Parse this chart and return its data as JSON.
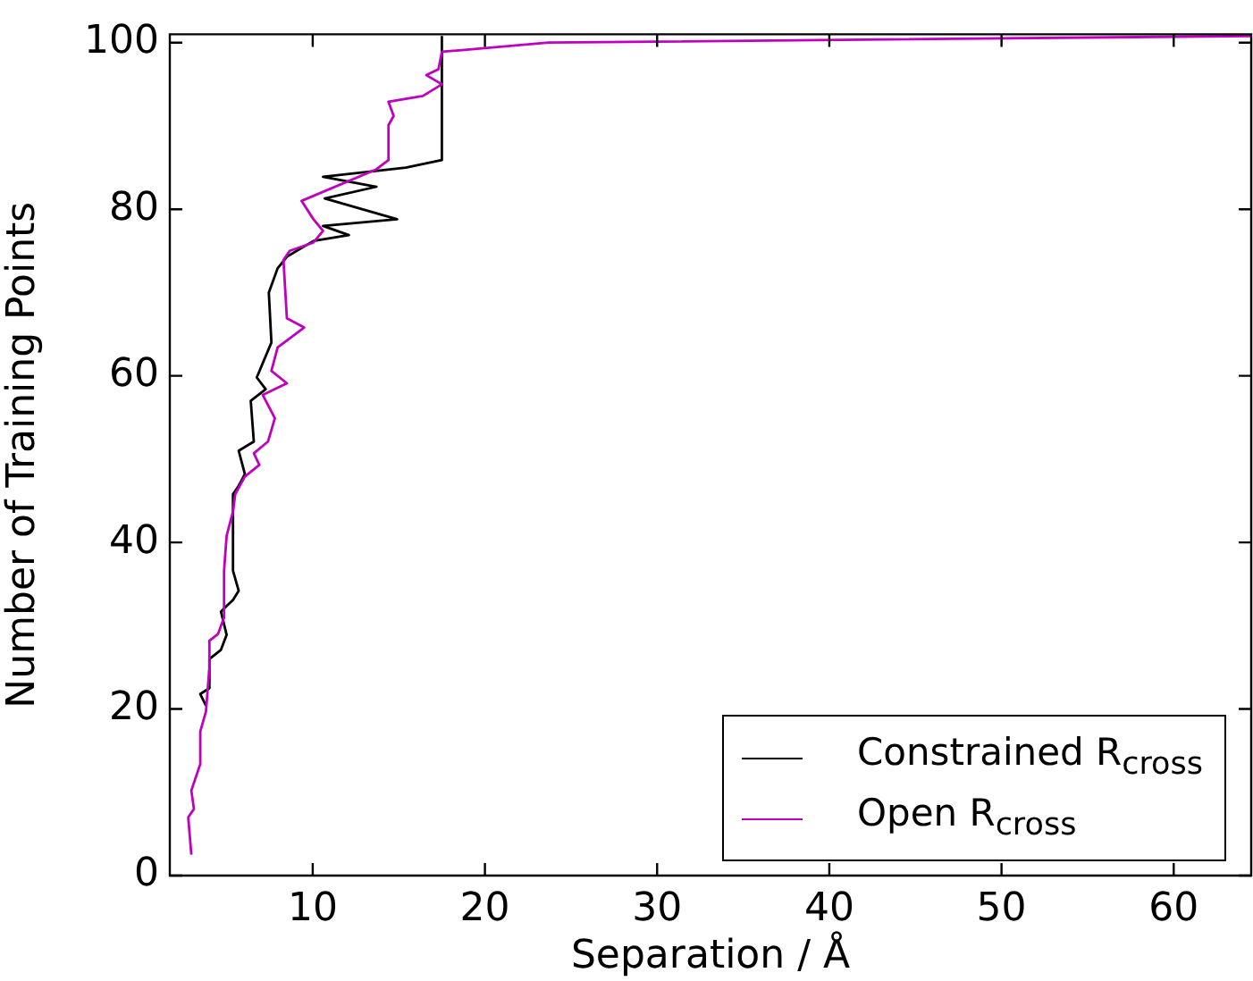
{
  "chart_data": {
    "type": "line",
    "xlabel": "Separation / Å",
    "ylabel": "Number of Training Points",
    "xlim": [
      1.7,
      64.5
    ],
    "ylim": [
      0,
      101
    ],
    "xticks": [
      10,
      20,
      30,
      40,
      50,
      60
    ],
    "yticks": [
      0,
      20,
      40,
      60,
      80,
      100
    ],
    "grid": false,
    "legend": "bottom right",
    "marker": "none",
    "line_style": "solid",
    "series": [
      {
        "name": "Constrained R$_{cross}$",
        "color": "#000000",
        "x": [
          3.8,
          3.47,
          4,
          4,
          4.67,
          5.0,
          4.67,
          5.37,
          5.7,
          5.37,
          5.37,
          5.7,
          6.06,
          5.7,
          6.58,
          6.4,
          7.27,
          6.75,
          7.6,
          7.45,
          7.96,
          8.5,
          10.05,
          12.1,
          10.6,
          14.9,
          10.7,
          13.7,
          10.6,
          15.4,
          17.5,
          17.5
        ],
        "values": [
          20.4,
          21.8,
          22.5,
          26,
          27.1,
          28.9,
          31.7,
          33.1,
          34.2,
          36.6,
          45.8,
          46.8,
          48.2,
          51,
          52.1,
          57,
          58.4,
          59.8,
          64,
          70,
          72.9,
          74.3,
          76.2,
          76.9,
          78,
          78.8,
          81.3,
          82.7,
          83.9,
          85,
          85.9,
          100.8
        ]
      },
      {
        "name": "Open R$_{cross}$",
        "color": "#bf00bf",
        "x": [
          2.95,
          2.77,
          3.1,
          2.95,
          3.47,
          3.47,
          3.8,
          3.99,
          4,
          4.5,
          4.85,
          4.85,
          5.0,
          5.37,
          5.5,
          6.06,
          6.9,
          6.58,
          7.4,
          7.8,
          7.1,
          8.5,
          7.6,
          7.96,
          9.5,
          8.5,
          8.3,
          8.66,
          10.04,
          10.6,
          10.04,
          9.35,
          13.7,
          14.4,
          14.4,
          14.7,
          14.4,
          16.4,
          17.5,
          16.6,
          17.3,
          17.5,
          23.7,
          64.5
        ],
        "values": [
          2.5,
          7,
          8,
          10.2,
          13.4,
          17.3,
          19.7,
          24.7,
          28.2,
          29,
          31,
          36.6,
          40.8,
          43.7,
          45.8,
          47.9,
          49.3,
          50.7,
          52.1,
          54.9,
          57.7,
          59.1,
          60.6,
          63.4,
          65.8,
          66.9,
          73.9,
          75,
          76,
          77.4,
          78.8,
          81,
          84.8,
          85.9,
          90.1,
          91.2,
          92.9,
          93.6,
          95,
          96.1,
          96.8,
          98.9,
          100,
          100.8
        ]
      }
    ]
  }
}
